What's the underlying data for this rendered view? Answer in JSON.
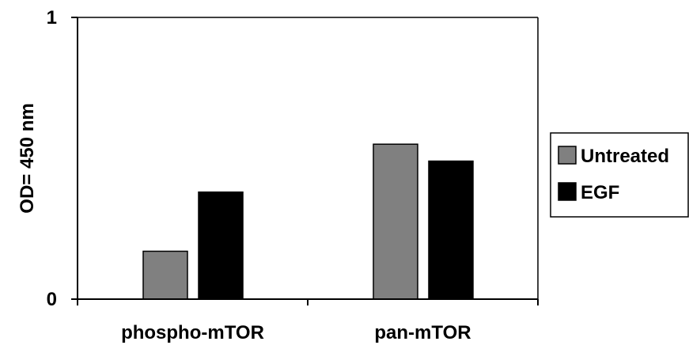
{
  "chart_data": {
    "type": "bar",
    "title": "",
    "xlabel": "",
    "ylabel": "OD= 450 nm",
    "categories": [
      "phospho-mTOR",
      "pan-mTOR"
    ],
    "series": [
      {
        "name": "Untreated",
        "color": "#808080",
        "values": [
          0.17,
          0.55
        ]
      },
      {
        "name": "EGF",
        "color": "#000000",
        "values": [
          0.38,
          0.49
        ]
      }
    ],
    "ylim": [
      0,
      1
    ],
    "yticks": [
      "0",
      "1"
    ],
    "grid": false,
    "legend": "right"
  }
}
